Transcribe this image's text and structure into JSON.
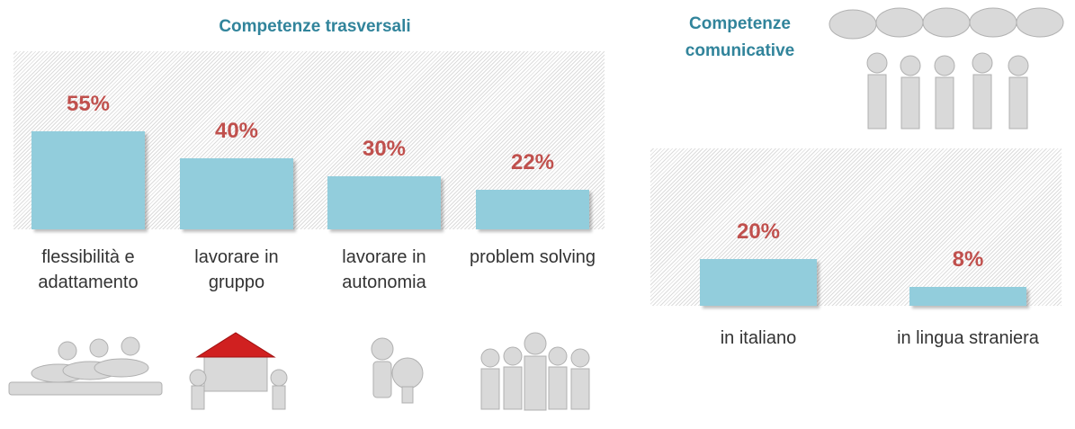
{
  "chart_data": [
    {
      "type": "bar",
      "title": "Competenze trasversali",
      "categories": [
        "flessibilità e adattamento",
        "lavorare in gruppo",
        "lavorare in autonomia",
        "problem solving"
      ],
      "values": [
        55,
        40,
        30,
        22
      ],
      "value_labels": [
        "55%",
        "40%",
        "30%",
        "22%"
      ],
      "color": "#92cddc",
      "label_color": "#c0504d",
      "ylim": [
        0,
        100
      ]
    },
    {
      "type": "bar",
      "title": "Competenze comunicative",
      "categories": [
        "in italiano",
        "in lingua straniera"
      ],
      "values": [
        20,
        8
      ],
      "value_labels": [
        "20%",
        "8%"
      ],
      "color": "#92cddc",
      "label_color": "#c0504d",
      "ylim": [
        0,
        67
      ]
    }
  ]
}
